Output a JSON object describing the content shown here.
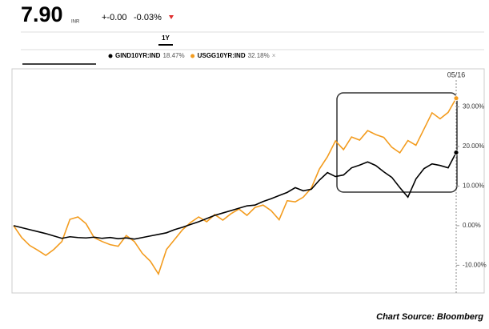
{
  "header": {
    "price": "7.90",
    "currency": "INR",
    "change": "+-0.00",
    "change_pct": "-0.03%",
    "tab": "1Y"
  },
  "chart_data": {
    "type": "line",
    "categories": [
      null,
      null,
      null,
      null,
      null,
      null,
      null,
      null,
      null,
      null,
      null,
      null,
      null,
      null,
      null,
      null,
      null,
      null,
      null,
      null,
      null,
      null,
      null,
      null,
      null,
      null,
      null,
      null,
      null,
      null,
      null,
      null,
      null,
      null,
      null,
      null,
      null,
      null,
      null,
      null,
      null,
      null,
      null,
      null,
      null,
      null,
      null,
      null,
      null,
      null,
      null,
      null,
      null,
      null,
      null,
      "05/16"
    ],
    "series": [
      {
        "name": "GIND10YR:IND",
        "legend_label": "18.47%",
        "color": "#000000",
        "values": [
          0,
          -0.5,
          -1,
          -1.5,
          -2,
          -2.6,
          -3.2,
          -2.8,
          -3,
          -3.1,
          -2.9,
          -3.2,
          -3,
          -3.3,
          -3.1,
          -3.4,
          -3,
          -2.6,
          -2.2,
          -1.8,
          -1,
          -0.4,
          0.3,
          1,
          1.8,
          2.6,
          3.2,
          3.8,
          4.4,
          5,
          5.2,
          6.1,
          6.8,
          7.6,
          8.4,
          9.6,
          8.8,
          9.2,
          11.5,
          13.4,
          12.4,
          12.8,
          14.6,
          15.3,
          16.1,
          15.2,
          13.6,
          12.2,
          9.6,
          7.2,
          11.8,
          14.4,
          15.6,
          15.2,
          14.6,
          18.47
        ]
      },
      {
        "name": "USGG10YR:IND",
        "legend_label": "32.18%",
        "color": "#f39c1f",
        "values": [
          0,
          -3,
          -5,
          -6.2,
          -7.5,
          -6,
          -4,
          1.6,
          2.2,
          0.5,
          -3,
          -4,
          -4.8,
          -5.2,
          -2.5,
          -4,
          -7,
          -9,
          -12.2,
          -6,
          -3.5,
          -1,
          0.8,
          2.2,
          1,
          2.8,
          1.4,
          3,
          4.2,
          2.6,
          4.6,
          5.2,
          3.8,
          1.5,
          6.3,
          6,
          7.2,
          9.5,
          14.3,
          17.4,
          21.4,
          19.2,
          22.4,
          21.6,
          24,
          23,
          22.3,
          19.8,
          18.4,
          21.5,
          20.3,
          24.4,
          28.5,
          27,
          28.6,
          32.18
        ]
      }
    ],
    "ylim": [
      -17,
      39.6
    ],
    "yticks": [
      {
        "value": -10,
        "label": "-10.00%"
      },
      {
        "value": 0,
        "label": "0.00%"
      },
      {
        "value": 10,
        "label": "10.00%"
      },
      {
        "value": 20,
        "label": "20.00%"
      },
      {
        "value": 30,
        "label": "30.00%"
      }
    ]
  },
  "footer": {
    "source": "Chart Source: Bloomberg"
  }
}
